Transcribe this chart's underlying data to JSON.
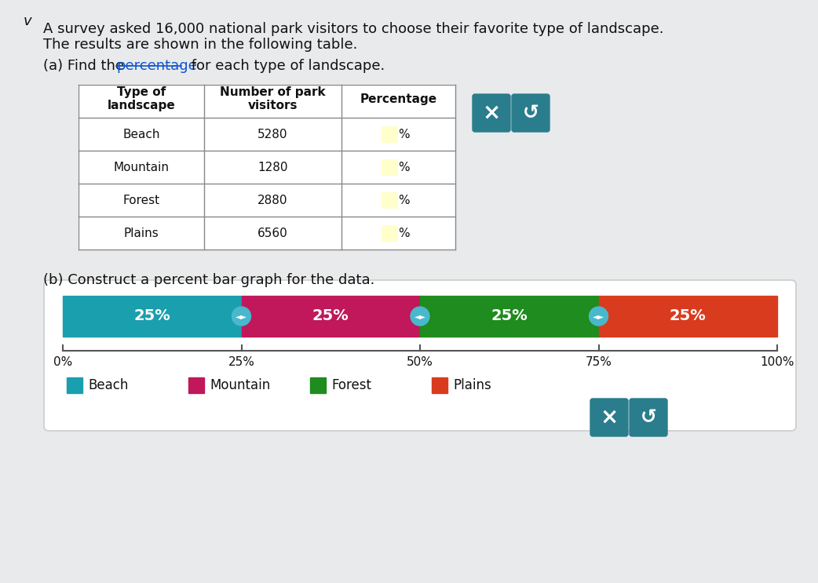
{
  "title_line1": "A survey asked 16,000 national park visitors to choose their favorite type of landscape.",
  "title_line2": "The results are shown in the following table.",
  "part_a_text": "(a) Find the percentage for each type of landscape.",
  "part_b_text": "(b) Construct a percent bar graph for the data.",
  "table_headers": [
    "Type of\nlandscape",
    "Number of park\nvisitors",
    "Percentage"
  ],
  "table_rows": [
    [
      "Beach",
      "5280"
    ],
    [
      "Mountain",
      "1280"
    ],
    [
      "Forest",
      "2880"
    ],
    [
      "Plains",
      "6560"
    ]
  ],
  "categories": [
    "Beach",
    "Mountain",
    "Forest",
    "Plains"
  ],
  "percentages": [
    25,
    25,
    25,
    25
  ],
  "bar_colors": [
    "#1a9fae",
    "#c0185a",
    "#1e8c1e",
    "#d93b1e"
  ],
  "legend_colors": [
    "#1a9fae",
    "#c0185a",
    "#1e8c1e",
    "#d93b1e"
  ],
  "x_tick_labels": [
    "0%",
    "25%",
    "50%",
    "75%",
    "100%"
  ],
  "x_tick_values": [
    0,
    25,
    50,
    75,
    100
  ],
  "background_color": "#e8eaec",
  "button_color": "#2a7d8c",
  "handle_color": "#4ab8cc",
  "bar_label_color": "#ffffff",
  "table_line_color": "#888888",
  "axis_color": "#555555",
  "text_color": "#111111",
  "white": "#ffffff",
  "input_box_fill": "#ffffcc",
  "input_box_edge": "#bbbb00",
  "underline_color": "#1155cc",
  "percentage_text_color": "#1155cc"
}
